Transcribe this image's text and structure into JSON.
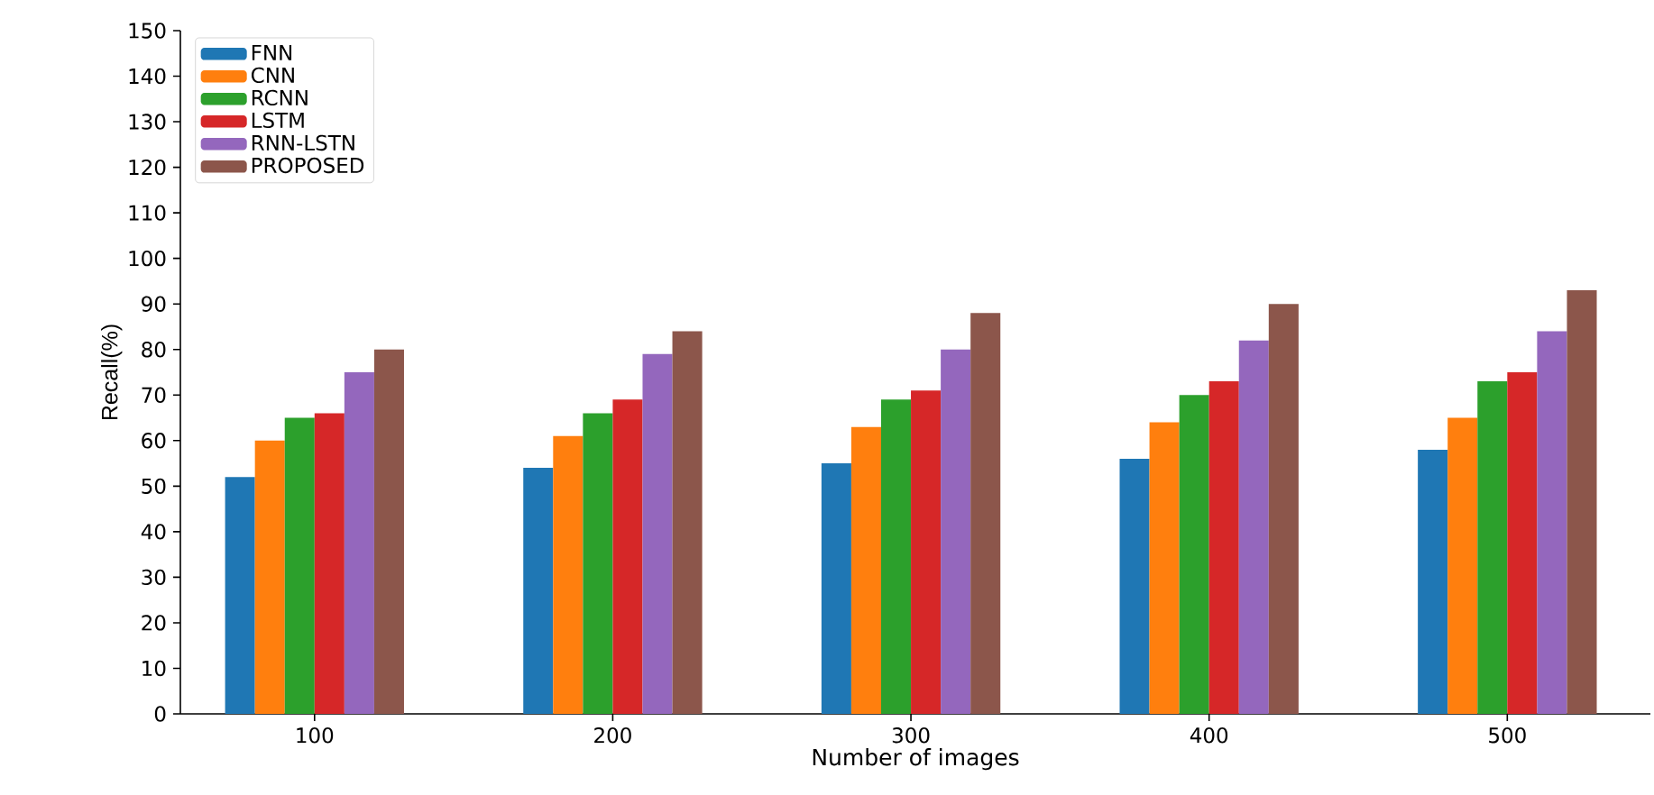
{
  "chart_data": {
    "type": "bar",
    "xlabel": "Number of images",
    "ylabel": "Recall(%)",
    "categories": [
      "100",
      "200",
      "300",
      "400",
      "500"
    ],
    "series": [
      {
        "name": "FNN",
        "color": "#1f77b4",
        "values": [
          52,
          54,
          55,
          56,
          58
        ]
      },
      {
        "name": "CNN",
        "color": "#ff7f0e",
        "values": [
          60,
          61,
          63,
          64,
          65
        ]
      },
      {
        "name": "RCNN",
        "color": "#2ca02c",
        "values": [
          65,
          66,
          69,
          70,
          73
        ]
      },
      {
        "name": "LSTM",
        "color": "#d62728",
        "values": [
          66,
          69,
          71,
          73,
          75
        ]
      },
      {
        "name": "RNN-LSTN",
        "color": "#9467bd",
        "values": [
          75,
          79,
          80,
          82,
          84
        ]
      },
      {
        "name": "PROPOSED",
        "color": "#8c564b",
        "values": [
          80,
          84,
          88,
          90,
          93
        ]
      }
    ],
    "ylim": [
      0,
      150
    ],
    "yticks": [
      0,
      10,
      20,
      30,
      40,
      50,
      60,
      70,
      80,
      90,
      100,
      110,
      120,
      130,
      140,
      150
    ],
    "legend": "top left",
    "grid": false
  }
}
